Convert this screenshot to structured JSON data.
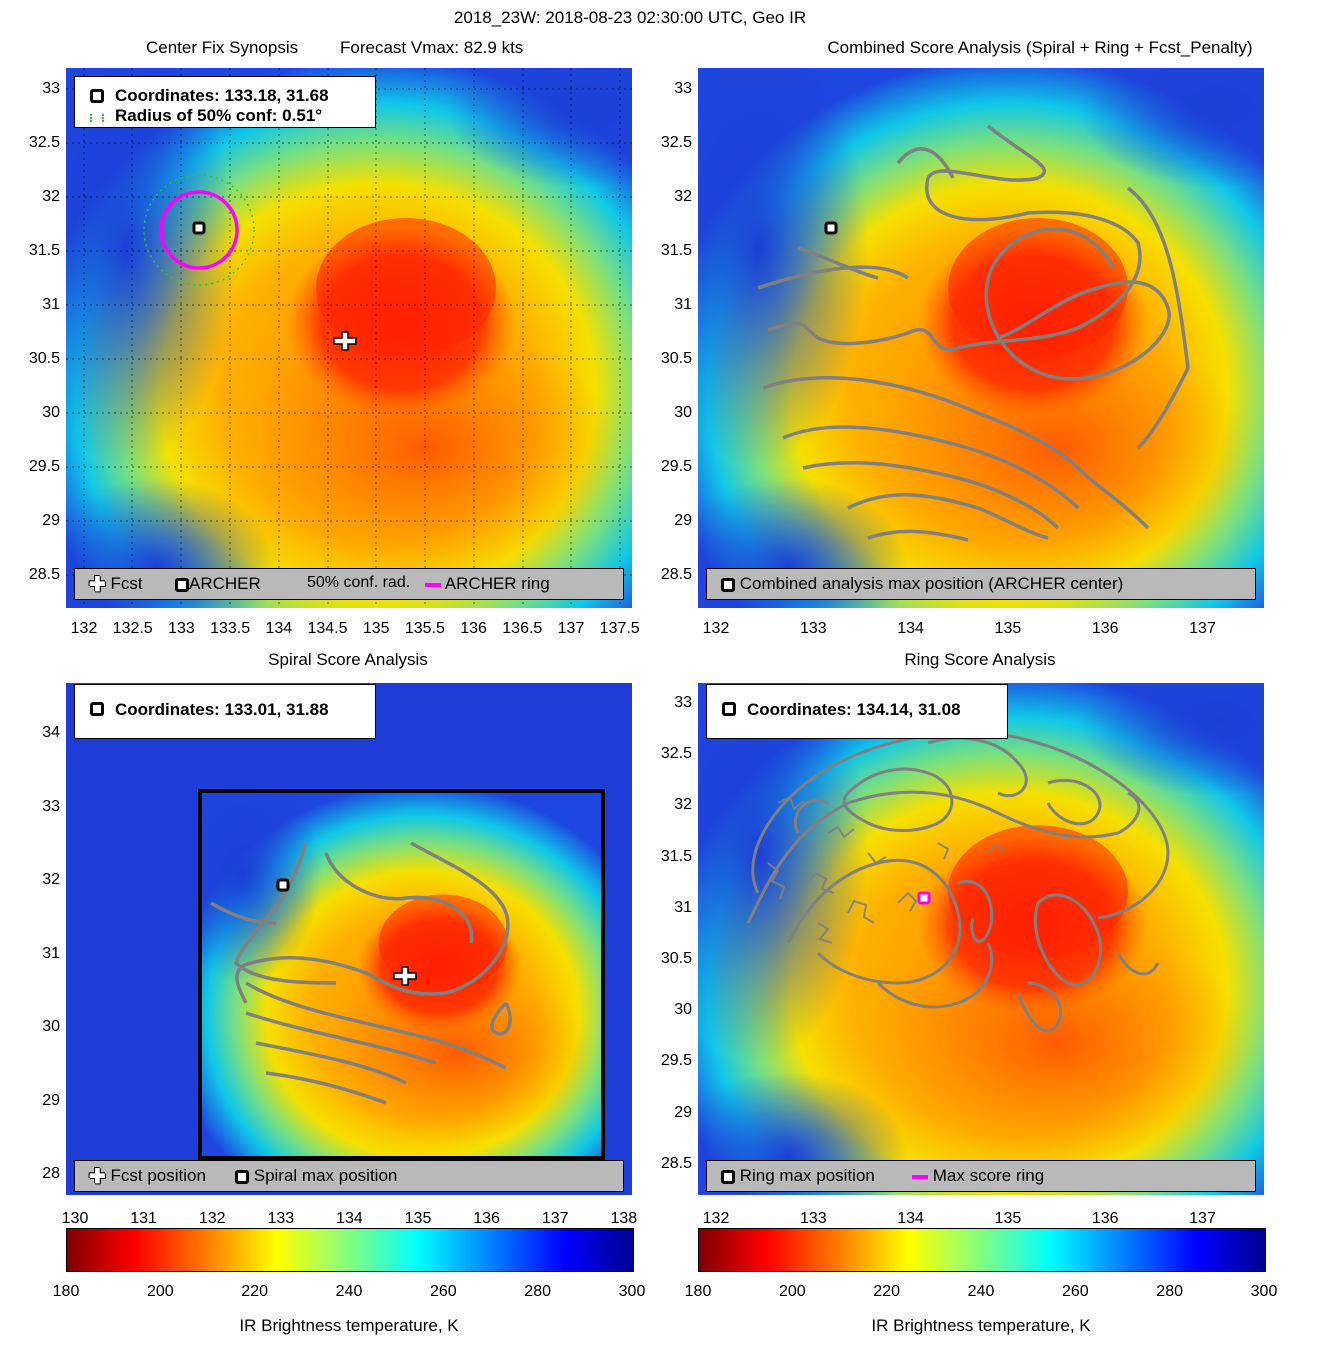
{
  "main_title": "2018_23W: 2018-08-23 02:30:00 UTC, Geo IR",
  "colors": {
    "ring": "#ff00ff",
    "contour": "#808080",
    "conf_radius": "#22cc22",
    "legend_bg": "#b9b9b9",
    "colormap": [
      "#800000",
      "#ff0000",
      "#ff8000",
      "#ffff00",
      "#80ff80",
      "#00ffff",
      "#0080ff",
      "#0000ff",
      "#00008f"
    ]
  },
  "panels": {
    "synopsis": {
      "title_left": "Center Fix Synopsis",
      "title_right": "Forecast Vmax: 82.9 kts",
      "info_line1": "Coordinates: 133.18, 31.68",
      "info_line2": "Radius of 50% conf: 0.51°",
      "legend": {
        "fcst": "Fcst",
        "archer": "ARCHER",
        "conf_rad": "50% conf. rad.",
        "ring": "ARCHER ring"
      },
      "xticks": [
        "132",
        "132.5",
        "133",
        "133.5",
        "134",
        "134.5",
        "135",
        "135.5",
        "136",
        "136.5",
        "137",
        "137.5"
      ],
      "yticks": [
        "33",
        "32.5",
        "32",
        "31.5",
        "31",
        "30.5",
        "30",
        "29.5",
        "29",
        "28.5"
      ]
    },
    "combined": {
      "title": "Combined Score Analysis (Spiral + Ring + Fcst_Penalty)",
      "legend": {
        "max": "Combined analysis max position (ARCHER center)"
      },
      "xticks": [
        "132",
        "133",
        "134",
        "135",
        "136",
        "137"
      ],
      "yticks": [
        "33",
        "32.5",
        "32",
        "31.5",
        "31",
        "30.5",
        "30",
        "29.5",
        "29",
        "28.5"
      ]
    },
    "spiral": {
      "title": "Spiral Score Analysis",
      "info_line1": "Coordinates: 133.01, 31.88",
      "legend": {
        "fcst": "Fcst position",
        "max": "Spiral max position"
      },
      "xticks": [
        "130",
        "131",
        "132",
        "133",
        "134",
        "135",
        "136",
        "137",
        "138"
      ],
      "yticks": [
        "34",
        "33",
        "32",
        "31",
        "30",
        "29",
        "28"
      ]
    },
    "ring": {
      "title": "Ring Score Analysis",
      "info_line1": "Coordinates: 134.14, 31.08",
      "legend": {
        "max": "Ring max position",
        "ring": "Max score ring"
      },
      "xticks": [
        "132",
        "133",
        "134",
        "135",
        "136",
        "137"
      ],
      "yticks": [
        "33",
        "32.5",
        "32",
        "31.5",
        "31",
        "30.5",
        "30",
        "29.5",
        "29",
        "28.5"
      ]
    }
  },
  "chart_data": [
    {
      "type": "heatmap",
      "title": "Center Fix Synopsis",
      "subtitle": "Forecast Vmax: 82.9 kts",
      "xlim": [
        131.8,
        137.55
      ],
      "ylim": [
        28.2,
        33.2
      ],
      "markers": [
        {
          "name": "Fcst",
          "x": 134.7,
          "y": 30.68
        },
        {
          "name": "ARCHER",
          "x": 133.18,
          "y": 31.68
        }
      ],
      "archer_ring_radius_deg": 0.38,
      "conf_radius_deg": 0.51
    },
    {
      "type": "heatmap",
      "title": "Combined Score Analysis (Spiral + Ring + Fcst_Penalty)",
      "xlim": [
        131.8,
        137.65
      ],
      "ylim": [
        28.2,
        33.2
      ],
      "markers": [
        {
          "name": "Combined analysis max position (ARCHER center)",
          "x": 133.18,
          "y": 31.68
        }
      ]
    },
    {
      "type": "heatmap",
      "title": "Spiral Score Analysis",
      "xlim": [
        130.0,
        138.0
      ],
      "ylim": [
        27.7,
        34.7
      ],
      "box": {
        "x": [
          131.9,
          137.6
        ],
        "y": [
          28.2,
          33.2
        ]
      },
      "markers": [
        {
          "name": "Fcst position",
          "x": 134.7,
          "y": 30.68
        },
        {
          "name": "Spiral max position",
          "x": 133.01,
          "y": 31.88
        }
      ]
    },
    {
      "type": "heatmap",
      "title": "Ring Score Analysis",
      "xlim": [
        131.8,
        137.65
      ],
      "ylim": [
        28.2,
        33.2
      ],
      "markers": [
        {
          "name": "Ring max position",
          "x": 134.14,
          "y": 31.08
        }
      ]
    }
  ],
  "colorbars": [
    {
      "ticks": [
        "180",
        "200",
        "220",
        "240",
        "260",
        "280",
        "300"
      ],
      "min": 180,
      "max": 300,
      "label": "IR Brightness temperature, K"
    },
    {
      "ticks": [
        "180",
        "200",
        "220",
        "240",
        "260",
        "280",
        "300"
      ],
      "min": 180,
      "max": 300,
      "label": "IR Brightness temperature, K"
    }
  ]
}
